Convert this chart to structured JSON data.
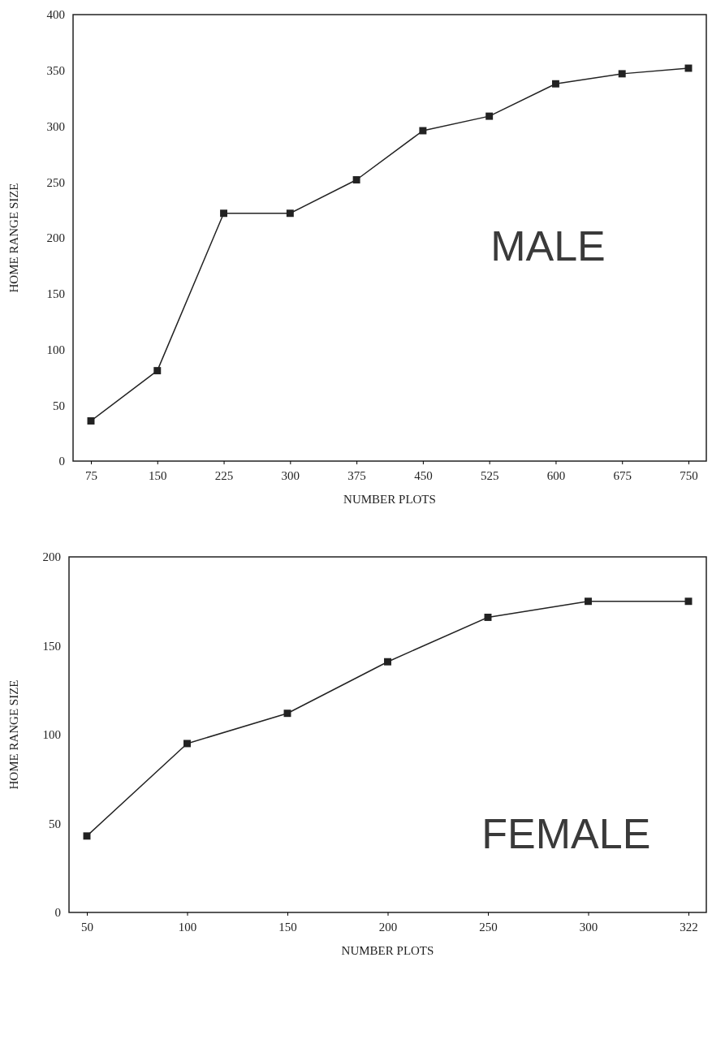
{
  "chart_data": [
    {
      "type": "line",
      "xlabel": "NUMBER PLOTS",
      "ylabel": "HOME RANGE SIZE",
      "annotations": [
        "MALE"
      ],
      "categories": [
        "75",
        "150",
        "225",
        "300",
        "375",
        "450",
        "525",
        "600",
        "675",
        "750"
      ],
      "series": [
        {
          "color": "#222222",
          "values": [
            36,
            81,
            222,
            222,
            252,
            296,
            309,
            338,
            347,
            352
          ]
        }
      ],
      "ylim": [
        0,
        400
      ],
      "yticks": [
        0,
        50,
        100,
        150,
        200,
        250,
        300,
        350,
        400
      ],
      "marker": "square",
      "line_style": "solid"
    },
    {
      "type": "line",
      "xlabel": "NUMBER PLOTS",
      "ylabel": "HOME RANGE SIZE",
      "annotations": [
        "FEMALE"
      ],
      "categories": [
        "50",
        "100",
        "150",
        "200",
        "250",
        "300",
        "322"
      ],
      "series": [
        {
          "color": "#222222",
          "values": [
            43,
            95,
            112,
            141,
            166,
            175,
            175
          ]
        }
      ],
      "ylim": [
        0,
        200
      ],
      "yticks": [
        0,
        50,
        100,
        150,
        200
      ],
      "marker": "square",
      "line_style": "solid"
    }
  ]
}
